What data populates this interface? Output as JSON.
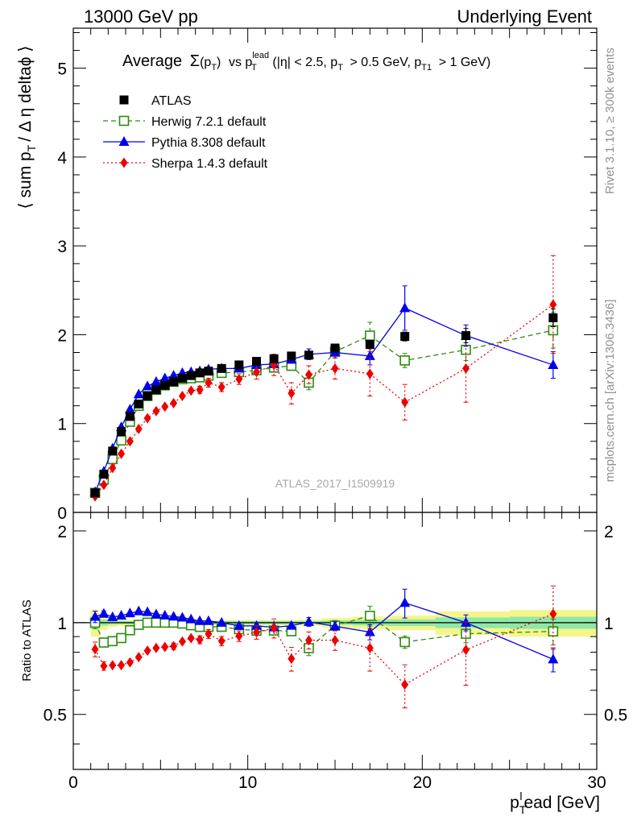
{
  "header": {
    "left": "13000 GeV pp",
    "right": "Underlying Event",
    "side_top": "Rivet 3.1.10, ≥ 300k events",
    "side_bottom": "mcplots.cern.ch [arXiv:1306.3436]",
    "watermark": "ATLAS_2017_I1509919"
  },
  "plot_title": {
    "prefix": "Average",
    "sigma": "Σ",
    "sigma_arg": "(p",
    "sigma_sub": "T",
    "sigma_close": ")",
    "vs": "vs p",
    "vs_sup": "lead",
    "vs_sub": "T",
    "cuts_a": "(|η| < 2.5, p",
    "cuts_a_sub": "T",
    "cuts_b": "> 0.5 GeV, p",
    "cuts_b_sub": "T1",
    "cuts_c": "> 1 GeV)"
  },
  "axis_labels": {
    "main_y": "⟨ sum p",
    "main_y_sub": "T",
    "main_y_rest": "/ Δ η deltaϕ ⟩",
    "ratio_y": "Ratio to ATLAS",
    "x_main": "p",
    "x_sub": "T",
    "x_sup": "l",
    "x_rest": "ead [GeV]"
  },
  "ticks": {
    "main_y": [
      "0",
      "1",
      "2",
      "3",
      "4",
      "5"
    ],
    "ratio_y": [
      "0.5",
      "1",
      "2"
    ],
    "ratio_y_right": [
      "0.5",
      "1",
      "2"
    ],
    "x": [
      "0",
      "10",
      "20",
      "30"
    ]
  },
  "colors": {
    "atlas": "#000000",
    "herwig": "#2e8b0f",
    "pythia": "#0000ee",
    "sherpa": "#ee0000",
    "band_inner": "#8fe8a8",
    "band_outer": "#f5f58a"
  },
  "chart_data": {
    "type": "scatter",
    "xlim": [
      0,
      30
    ],
    "main_ylim": [
      0,
      5.45
    ],
    "ratio_ylim": [
      0.33,
      2.3
    ],
    "ratio_log": true,
    "x": [
      1.25,
      1.75,
      2.25,
      2.75,
      3.25,
      3.75,
      4.25,
      4.75,
      5.25,
      5.75,
      6.25,
      6.75,
      7.25,
      7.75,
      8.5,
      9.5,
      10.5,
      11.5,
      12.5,
      13.5,
      15,
      17,
      19,
      22.5,
      27.5
    ],
    "series": [
      {
        "name": "ATLAS",
        "key": "atlas",
        "marker": "square",
        "line": "none",
        "values": [
          0.22,
          0.43,
          0.69,
          0.91,
          1.08,
          1.22,
          1.31,
          1.38,
          1.43,
          1.47,
          1.51,
          1.54,
          1.57,
          1.59,
          1.62,
          1.66,
          1.7,
          1.73,
          1.76,
          1.77,
          1.85,
          1.89,
          1.98,
          1.99,
          2.19
        ],
        "errors": [
          0.01,
          0.01,
          0.01,
          0.01,
          0.01,
          0.01,
          0.01,
          0.01,
          0.01,
          0.01,
          0.01,
          0.01,
          0.01,
          0.01,
          0.01,
          0.01,
          0.01,
          0.01,
          0.01,
          0.02,
          0.03,
          0.04,
          0.05,
          0.08,
          0.1
        ]
      },
      {
        "name": "Herwig 7.2.1 default",
        "key": "herwig",
        "marker": "open-square",
        "line": "dashed",
        "values": [
          0.22,
          0.37,
          0.6,
          0.81,
          1.02,
          1.2,
          1.31,
          1.38,
          1.43,
          1.47,
          1.5,
          1.51,
          1.52,
          1.54,
          1.57,
          1.58,
          1.6,
          1.63,
          1.65,
          1.46,
          1.81,
          1.99,
          1.71,
          1.83,
          2.05
        ],
        "errors": [
          0.01,
          0.01,
          0.01,
          0.01,
          0.01,
          0.01,
          0.01,
          0.01,
          0.01,
          0.01,
          0.01,
          0.01,
          0.01,
          0.01,
          0.02,
          0.02,
          0.03,
          0.04,
          0.05,
          0.08,
          0.07,
          0.15,
          0.08,
          0.12,
          0.2
        ]
      },
      {
        "name": "Pythia 8.308 default",
        "key": "pythia",
        "marker": "triangle",
        "line": "solid",
        "values": [
          0.23,
          0.46,
          0.72,
          0.96,
          1.16,
          1.33,
          1.42,
          1.47,
          1.51,
          1.54,
          1.57,
          1.58,
          1.59,
          1.61,
          1.62,
          1.62,
          1.66,
          1.67,
          1.72,
          1.78,
          1.8,
          1.76,
          2.3,
          1.99,
          1.66
        ],
        "errors": [
          0.01,
          0.01,
          0.01,
          0.01,
          0.01,
          0.01,
          0.01,
          0.01,
          0.01,
          0.01,
          0.01,
          0.01,
          0.01,
          0.01,
          0.02,
          0.02,
          0.03,
          0.03,
          0.04,
          0.06,
          0.06,
          0.1,
          0.25,
          0.12,
          0.15
        ]
      },
      {
        "name": "Sherpa 1.4.3 default",
        "key": "sherpa",
        "marker": "diamond",
        "line": "dotted",
        "values": [
          0.18,
          0.31,
          0.5,
          0.66,
          0.8,
          0.94,
          1.06,
          1.14,
          1.19,
          1.23,
          1.31,
          1.37,
          1.38,
          1.46,
          1.41,
          1.5,
          1.58,
          1.66,
          1.34,
          1.55,
          1.62,
          1.56,
          1.24,
          1.62,
          2.34
        ],
        "errors": [
          0.01,
          0.01,
          0.01,
          0.01,
          0.01,
          0.01,
          0.02,
          0.02,
          0.02,
          0.03,
          0.03,
          0.03,
          0.04,
          0.05,
          0.05,
          0.06,
          0.08,
          0.12,
          0.12,
          0.1,
          0.12,
          0.25,
          0.2,
          0.38,
          0.55
        ]
      }
    ]
  }
}
